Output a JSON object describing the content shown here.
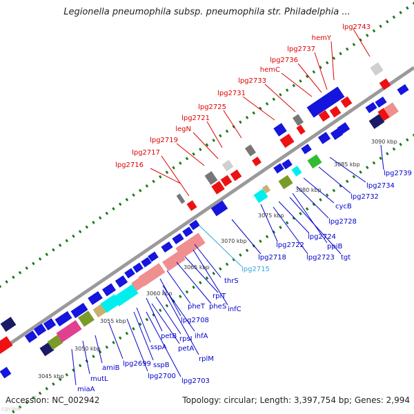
{
  "title": "Legionella pneumophila subsp. pneumophila str. Philadelphia ...",
  "footer": {
    "accession": "Accession: NC_002942",
    "topology": "Topology: circular; Length: 3,397,754 bp; Genes: 2,994"
  },
  "watermark": "cgview",
  "colors": {
    "backbone": "#9a9a9a",
    "tick_dots": "#1a7a1a",
    "forward_gene_label": "#dd0000",
    "reverse_gene_label": "#0000cc",
    "highlight_gene_label": "#33a6e0",
    "gene_blue": "#1515dd",
    "gene_red": "#ee1111",
    "gene_pink": "#f08f8f",
    "gene_cyan": "#00eeee",
    "gene_olive": "#7a9a2a",
    "gene_green": "#33bb33",
    "gene_grey": "#777777",
    "gene_navy": "#1a1a66",
    "gene_tan": "#c8b070",
    "gene_magenta": "#e04090"
  },
  "kbp_ticks": [
    "3045 kbp",
    "3050 kbp",
    "3055 kbp",
    "3060 kbp",
    "3065 kbp",
    "3070 kbp",
    "3075 kbp",
    "3080 kbp",
    "3085 kbp",
    "3090 kbp"
  ],
  "forward_strand_labels": [
    "lpg2716",
    "lpg2717",
    "lpg2719",
    "legN",
    "lpg2721",
    "lpg2725",
    "lpg2731",
    "lpg2733",
    "hemC",
    "lpg2736",
    "lpg2737",
    "hemY",
    "lpg2743"
  ],
  "reverse_strand_labels": [
    "miaA",
    "mutL",
    "amiB",
    "lpg2699",
    "lpg2700",
    "sspB",
    "lpg2703",
    "sspA",
    "petB",
    "rplM",
    "petA",
    "rpsI",
    "ihfA",
    "lpg2708",
    "pheT",
    "pheS",
    "rplT",
    "infC",
    "thrS",
    "lpg2718",
    "lpg2722",
    "lpg2723",
    "lpg2724",
    "tgt",
    "ppiB",
    "lpg2728",
    "cycB",
    "lpg2732",
    "lpg2734",
    "lpg2739"
  ],
  "highlighted_labels": [
    "lpg2715"
  ]
}
